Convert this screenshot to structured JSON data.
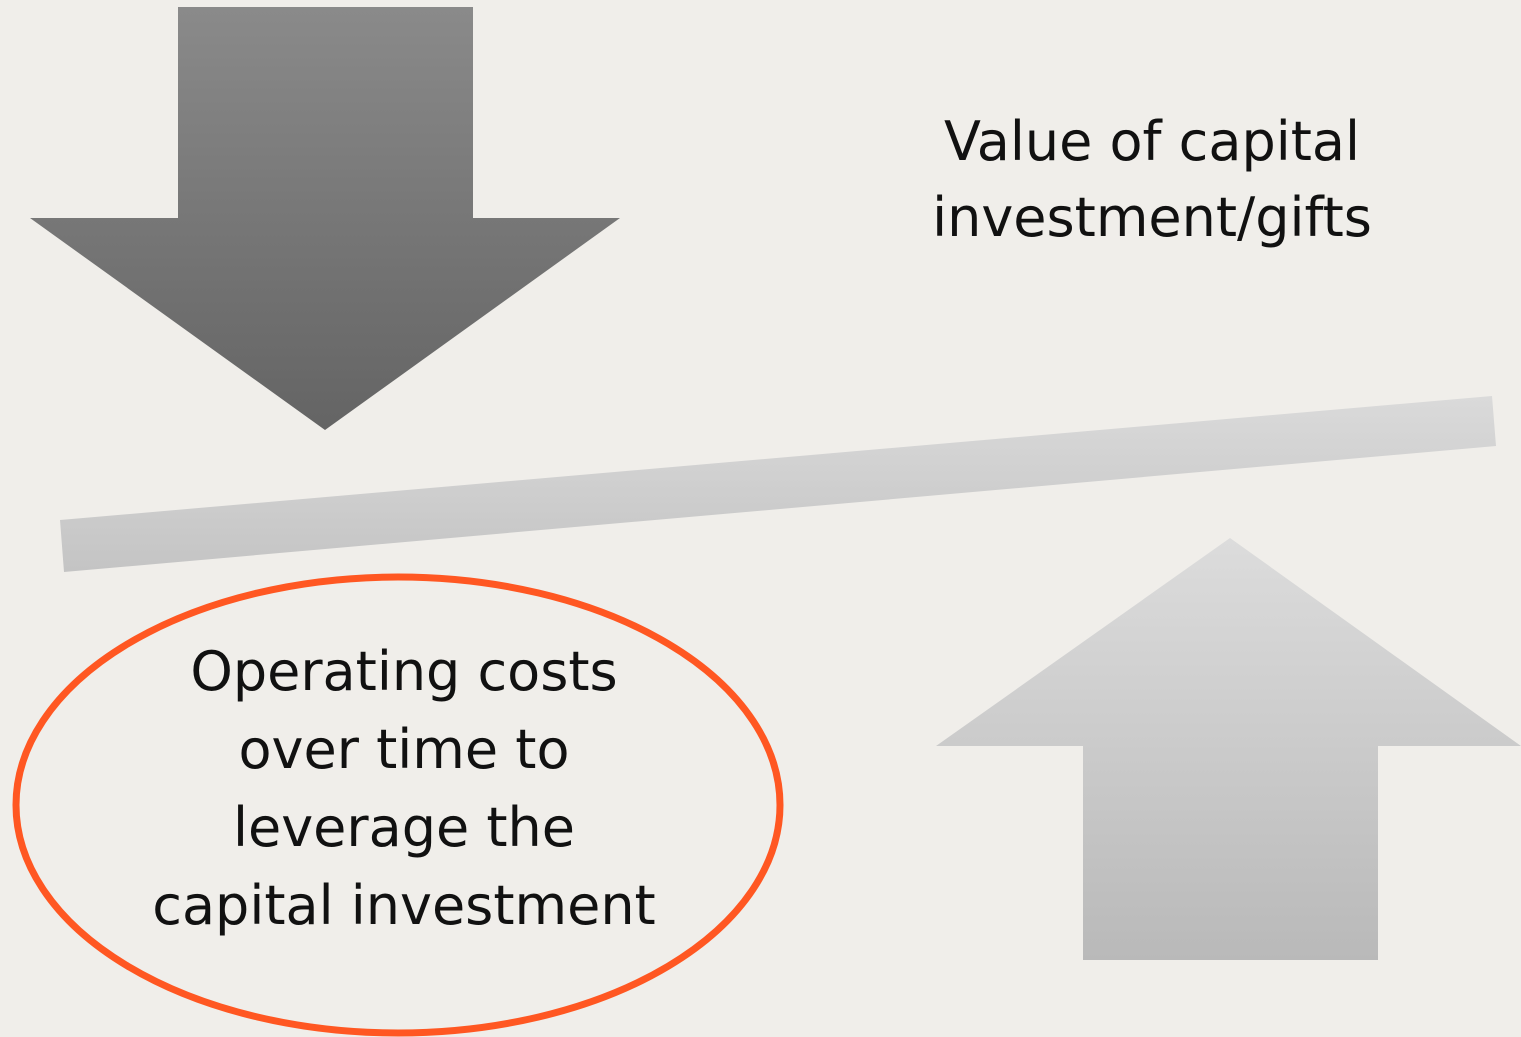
{
  "labels": {
    "top_right": [
      "Value of capital",
      "investment/gifts"
    ],
    "bottom_left": [
      "Operating costs",
      "over time to",
      "leverage the",
      "capital investment"
    ]
  }
}
